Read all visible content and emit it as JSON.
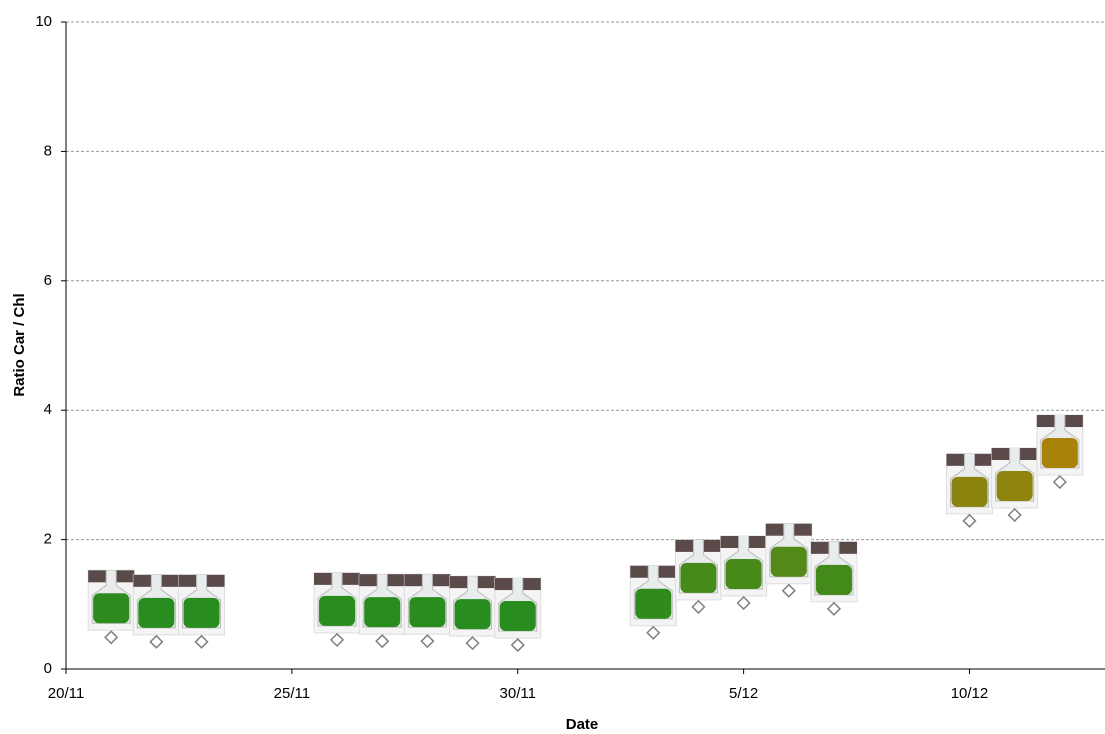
{
  "chart_data": {
    "type": "scatter",
    "x_label": "Date",
    "y_label": "Ratio Car / Chl",
    "x": [
      1,
      2,
      3,
      6,
      7,
      8,
      9,
      10,
      13,
      14,
      15,
      16,
      17,
      20,
      21,
      22
    ],
    "series": [
      {
        "color": "#7f7f7f",
        "values": [
          0.49,
          0.42,
          0.42,
          0.45,
          0.43,
          0.43,
          0.4,
          0.37,
          0.56,
          0.96,
          1.02,
          1.21,
          0.93,
          2.29,
          2.38,
          2.89
        ]
      }
    ],
    "xlim": [
      0,
      23
    ],
    "xticks": [
      {
        "value": 0,
        "label": "20/11"
      },
      {
        "value": 5,
        "label": "25/11"
      },
      {
        "value": 10,
        "label": "30/11"
      },
      {
        "value": 15,
        "label": "5/12"
      },
      {
        "value": 20,
        "label": "10/12"
      }
    ],
    "ylim": [
      0,
      10
    ],
    "yticks": [
      0,
      2,
      4,
      6,
      8,
      10
    ],
    "grid": true
  }
}
